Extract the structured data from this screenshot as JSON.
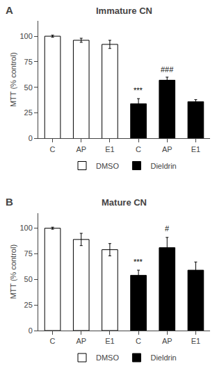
{
  "chart_data": [
    {
      "type": "bar",
      "title": "Immature CN",
      "panel_label": "A",
      "categories": [
        "C",
        "AP",
        "E1",
        "C",
        "AP",
        "E1"
      ],
      "series": [
        {
          "name": "DMSO",
          "color": "white",
          "values": [
            100,
            96,
            92,
            null,
            null,
            null
          ],
          "errors": [
            1,
            2,
            4,
            null,
            null,
            null
          ]
        },
        {
          "name": "Dieldrin",
          "color": "black",
          "values": [
            null,
            null,
            null,
            34,
            57,
            36
          ],
          "errors": [
            null,
            null,
            null,
            5,
            3,
            2
          ]
        }
      ],
      "annotations": [
        {
          "x": 3,
          "y": 42,
          "text": "***"
        },
        {
          "x": 4,
          "y": 62,
          "text": "###"
        }
      ],
      "ylabel": "MTT (% control)",
      "ylim": [
        0,
        115
      ],
      "yticks": [
        0,
        25,
        50,
        75,
        100
      ],
      "grid": false,
      "legend": "bottom"
    },
    {
      "type": "bar",
      "title": "Mature CN",
      "panel_label": "B",
      "categories": [
        "C",
        "AP",
        "E1",
        "C",
        "AP",
        "E1"
      ],
      "series": [
        {
          "name": "DMSO",
          "color": "white",
          "values": [
            100,
            89,
            79,
            null,
            null,
            null
          ],
          "errors": [
            1,
            6,
            6,
            null,
            null,
            null
          ]
        },
        {
          "name": "Dieldrin",
          "color": "black",
          "values": [
            null,
            null,
            null,
            54,
            81,
            59
          ],
          "errors": [
            null,
            null,
            null,
            5,
            10,
            8
          ]
        }
      ],
      "annotations": [
        {
          "x": 3,
          "y": 62,
          "text": "***"
        },
        {
          "x": 4,
          "y": 94,
          "text": "#"
        }
      ],
      "ylabel": "MTT (% control)",
      "ylim": [
        0,
        115
      ],
      "yticks": [
        0,
        25,
        50,
        75,
        100
      ],
      "grid": false,
      "legend": "bottom"
    }
  ]
}
